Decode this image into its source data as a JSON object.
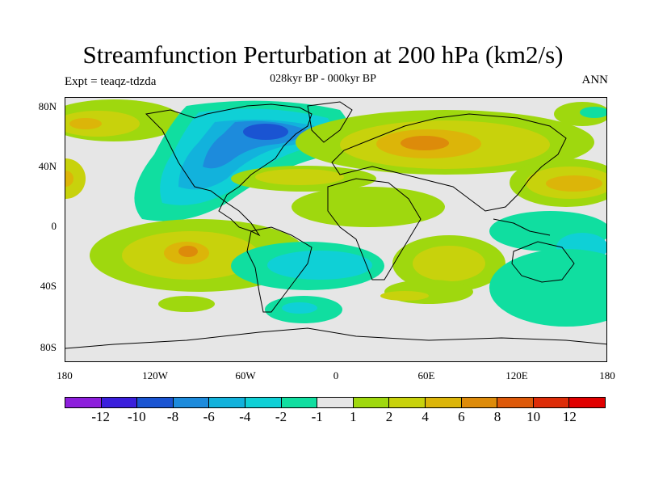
{
  "header": {
    "title": "Streamfunction Perturbation at 200 hPa (km2/s)",
    "subtitle": "028kyr BP - 000kyr BP",
    "left": "Expt = teaqz-tdzda",
    "right": "ANN"
  },
  "axes": {
    "lat_labels": [
      "80N",
      "40N",
      "0",
      "40S",
      "80S"
    ],
    "lon_labels": [
      "180",
      "120W",
      "60W",
      "0",
      "60E",
      "120E",
      "180"
    ]
  },
  "colorbar": {
    "colors": [
      "#8d1fdc",
      "#3a1fdc",
      "#1a54d2",
      "#1d8bdc",
      "#12b2dc",
      "#0fd0d6",
      "#10dea0",
      "#e6e6e6",
      "#9fd80e",
      "#c8d20c",
      "#dcb509",
      "#dd8b0a",
      "#dd5909",
      "#dd2c08",
      "#e00000"
    ],
    "labels": [
      "-12",
      "-10",
      "-8",
      "-6",
      "-4",
      "-2",
      "-1",
      "1",
      "2",
      "4",
      "6",
      "8",
      "10",
      "12"
    ]
  }
}
